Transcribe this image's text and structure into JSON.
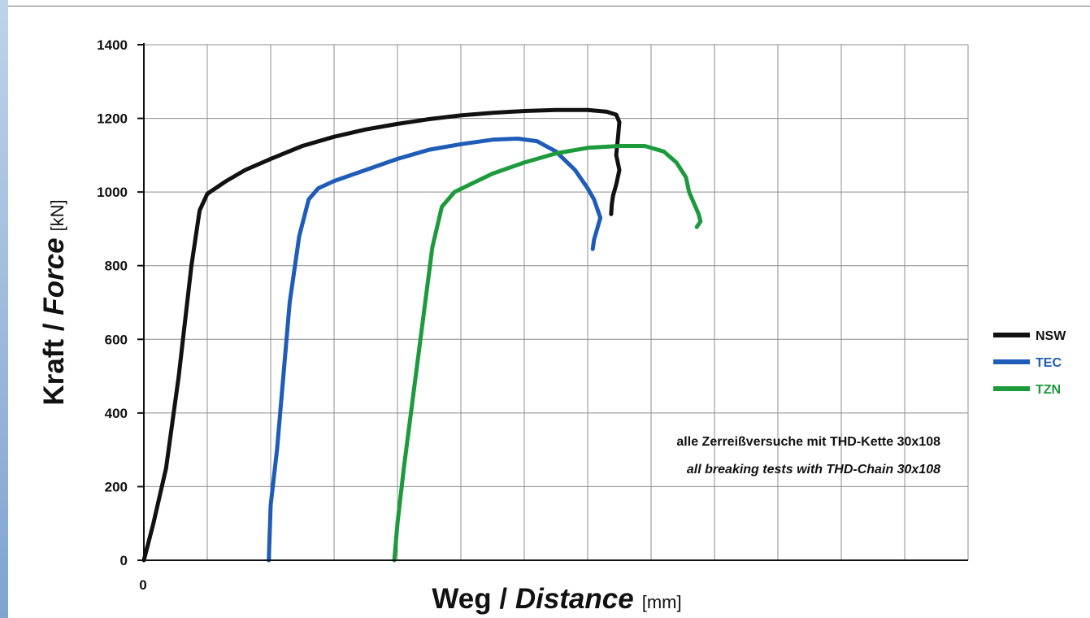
{
  "chart_data": {
    "type": "line",
    "y_ticks": [
      "0",
      "200",
      "400",
      "600",
      "800",
      "1000",
      "1200",
      "1400"
    ],
    "x_ticks": [
      "0"
    ],
    "ylim": [
      0,
      1400
    ],
    "xlim": [
      0,
      13
    ],
    "grid": true,
    "x_label": {
      "main": "Weg / ",
      "italic": "Distance",
      "unit": "[mm]"
    },
    "y_label": {
      "main": "Kraft / ",
      "italic": "Force",
      "unit": "[kN]"
    },
    "annotation": {
      "line1": "alle Zerreißversuche mit THD-Kette 30x108",
      "line2": "all breaking tests with THD-Chain 30x108"
    },
    "legend_position": "right",
    "series": [
      {
        "name": "NSW",
        "color": "#111111",
        "points": [
          [
            0,
            0
          ],
          [
            0.15,
            100
          ],
          [
            0.35,
            250
          ],
          [
            0.55,
            500
          ],
          [
            0.75,
            800
          ],
          [
            0.88,
            950
          ],
          [
            1.0,
            995
          ],
          [
            1.3,
            1030
          ],
          [
            1.6,
            1060
          ],
          [
            2.0,
            1090
          ],
          [
            2.5,
            1125
          ],
          [
            3.0,
            1150
          ],
          [
            3.5,
            1170
          ],
          [
            4.0,
            1185
          ],
          [
            4.5,
            1198
          ],
          [
            5.0,
            1208
          ],
          [
            5.5,
            1215
          ],
          [
            6.0,
            1220
          ],
          [
            6.5,
            1223
          ],
          [
            7.0,
            1223
          ],
          [
            7.3,
            1218
          ],
          [
            7.45,
            1210
          ],
          [
            7.5,
            1190
          ],
          [
            7.48,
            1150
          ],
          [
            7.45,
            1100
          ],
          [
            7.5,
            1060
          ],
          [
            7.45,
            1020
          ],
          [
            7.4,
            990
          ],
          [
            7.38,
            965
          ],
          [
            7.37,
            940
          ]
        ]
      },
      {
        "name": "TEC",
        "color": "#1f5cb8",
        "points": [
          [
            1.97,
            0
          ],
          [
            2.0,
            150
          ],
          [
            2.1,
            300
          ],
          [
            2.2,
            500
          ],
          [
            2.3,
            700
          ],
          [
            2.45,
            880
          ],
          [
            2.6,
            980
          ],
          [
            2.75,
            1010
          ],
          [
            3.0,
            1030
          ],
          [
            3.5,
            1060
          ],
          [
            4.0,
            1090
          ],
          [
            4.5,
            1115
          ],
          [
            5.0,
            1130
          ],
          [
            5.5,
            1142
          ],
          [
            5.9,
            1145
          ],
          [
            6.2,
            1138
          ],
          [
            6.5,
            1110
          ],
          [
            6.8,
            1060
          ],
          [
            7.0,
            1010
          ],
          [
            7.1,
            980
          ],
          [
            7.15,
            955
          ],
          [
            7.2,
            930
          ],
          [
            7.15,
            900
          ],
          [
            7.1,
            870
          ],
          [
            7.08,
            845
          ]
        ]
      },
      {
        "name": "TZN",
        "color": "#1c9a3c",
        "points": [
          [
            3.95,
            0
          ],
          [
            4.0,
            100
          ],
          [
            4.1,
            250
          ],
          [
            4.25,
            450
          ],
          [
            4.4,
            650
          ],
          [
            4.55,
            850
          ],
          [
            4.7,
            960
          ],
          [
            4.9,
            1000
          ],
          [
            5.2,
            1025
          ],
          [
            5.5,
            1050
          ],
          [
            6.0,
            1080
          ],
          [
            6.5,
            1105
          ],
          [
            7.0,
            1120
          ],
          [
            7.5,
            1125
          ],
          [
            7.9,
            1125
          ],
          [
            8.2,
            1110
          ],
          [
            8.4,
            1080
          ],
          [
            8.55,
            1040
          ],
          [
            8.6,
            1000
          ],
          [
            8.7,
            960
          ],
          [
            8.75,
            940
          ],
          [
            8.78,
            920
          ],
          [
            8.72,
            905
          ]
        ]
      }
    ]
  }
}
